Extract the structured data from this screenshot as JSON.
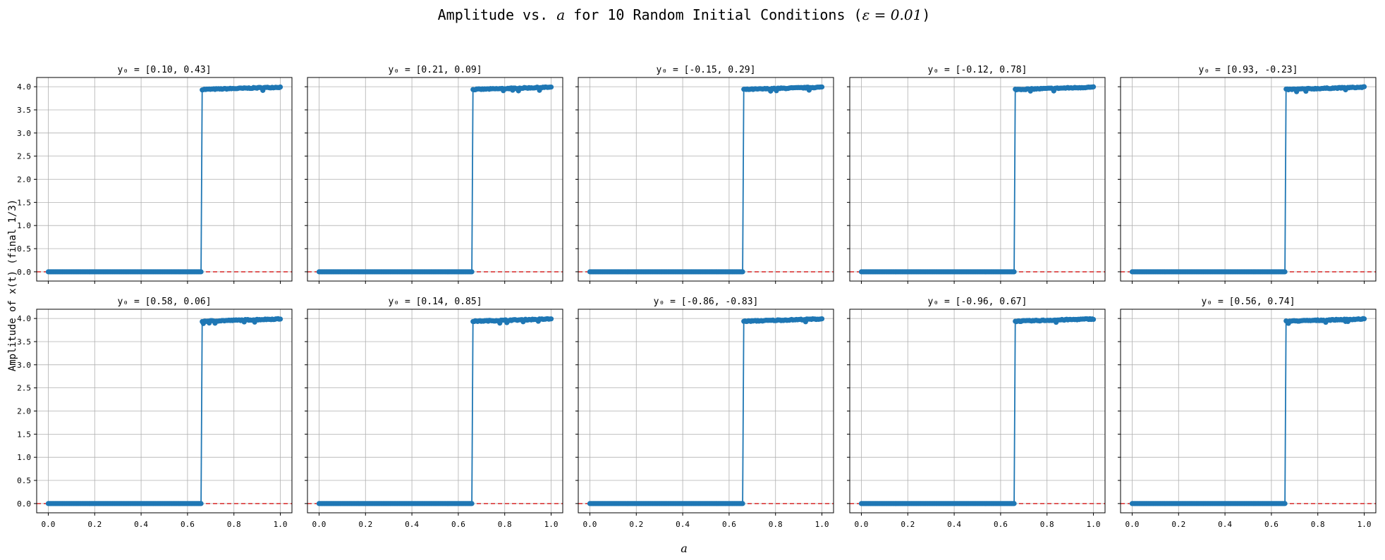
{
  "figure": {
    "suptitle_prefix": "Amplitude vs. ",
    "suptitle_var": "a",
    "suptitle_mid": " for 10 Random Initial Conditions (",
    "suptitle_eps": "ε = 0.01",
    "suptitle_suffix": ")",
    "xlabel": "a",
    "ylabel": "Amplitude of x(t) (final 1/3)"
  },
  "colors": {
    "series": "#1f77b4",
    "reference": "#d62728",
    "grid": "#b0b0b0",
    "axes": "#000000"
  },
  "chart_data": {
    "type": "line",
    "layout": "2x5 subplots, shared axes",
    "xlim": [
      -0.05,
      1.05
    ],
    "ylim": [
      -0.2,
      4.2
    ],
    "xticks": [
      "0.0",
      "0.2",
      "0.4",
      "0.6",
      "0.8",
      "1.0"
    ],
    "yticks": [
      "0.0",
      "0.5",
      "1.0",
      "1.5",
      "2.0",
      "2.5",
      "3.0",
      "3.5",
      "4.0"
    ],
    "grid": true,
    "reference_line": {
      "y": 0,
      "style": "dashed",
      "color": "red"
    },
    "transition_a": 0.66,
    "low_amplitude": 0.0,
    "high_amplitude_range": [
      3.94,
      3.99
    ],
    "panels": [
      {
        "title": "y₀ = [0.10, 0.43]"
      },
      {
        "title": "y₀ = [0.21, 0.09]"
      },
      {
        "title": "y₀ = [-0.15, 0.29]"
      },
      {
        "title": "y₀ = [-0.12, 0.78]"
      },
      {
        "title": "y₀ = [0.93, -0.23]"
      },
      {
        "title": "y₀ = [0.58, 0.06]"
      },
      {
        "title": "y₀ = [0.14, 0.85]"
      },
      {
        "title": "y₀ = [-0.86, -0.83]"
      },
      {
        "title": "y₀ = [-0.96, 0.67]"
      },
      {
        "title": "y₀ = [0.56, 0.74]"
      }
    ]
  }
}
